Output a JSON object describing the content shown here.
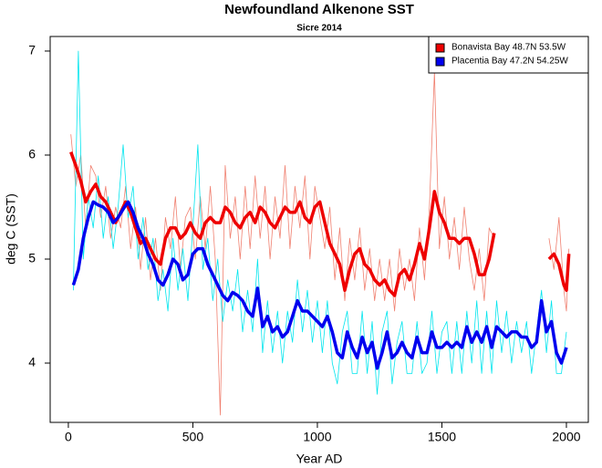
{
  "chart_data": {
    "type": "line",
    "title": "Newfoundland Alkenone SST",
    "subtitle": "Sicre 2014",
    "x_label": "Year AD",
    "y_label": "deg C (SST)",
    "xlim": [
      -73,
      2088
    ],
    "ylim": [
      3.43,
      7.14
    ],
    "xticks": [
      0,
      500,
      1000,
      1500,
      2000
    ],
    "yticks": [
      4,
      5,
      6,
      7
    ],
    "legend": "top-right",
    "series": [
      {
        "color": "#f08070",
        "width": 0.8,
        "x": [
          10,
          30,
          50,
          70,
          90,
          110,
          130,
          150,
          170,
          190,
          210,
          230,
          250,
          270,
          290,
          310,
          330,
          350,
          370,
          390,
          410,
          430,
          450,
          470,
          490,
          510,
          530,
          550,
          570,
          590,
          610,
          630,
          650,
          670,
          690,
          710,
          730,
          750,
          770,
          790,
          810,
          830,
          850,
          870,
          890,
          910,
          930,
          950,
          970,
          990,
          1010,
          1030,
          1050,
          1070,
          1090,
          1110,
          1130,
          1150,
          1170,
          1190,
          1210,
          1230,
          1250,
          1270,
          1290,
          1310,
          1330,
          1350,
          1370,
          1390,
          1410,
          1430,
          1450,
          1470,
          1490,
          1510,
          1530,
          1550,
          1570,
          1590,
          1610,
          1630,
          1650,
          1670,
          1690,
          1710,
          1820,
          1930,
          1950,
          1970,
          1990,
          2000,
          2010
        ],
        "values": [
          6.2,
          5.7,
          6.0,
          5.3,
          5.9,
          5.8,
          5.4,
          5.7,
          5.2,
          5.5,
          5.3,
          5.7,
          5.1,
          5.5,
          4.9,
          5.4,
          4.8,
          5.2,
          4.7,
          5.4,
          5.1,
          5.6,
          4.9,
          5.4,
          5.5,
          5.0,
          5.6,
          5.1,
          5.7,
          5.0,
          3.5,
          5.9,
          5.2,
          5.6,
          5.0,
          5.7,
          5.1,
          5.8,
          5.2,
          5.7,
          5.0,
          5.6,
          5.2,
          5.9,
          5.1,
          5.7,
          5.3,
          5.8,
          5.0,
          5.7,
          5.4,
          5.1,
          5.5,
          4.8,
          5.3,
          4.6,
          5.2,
          4.8,
          5.3,
          4.7,
          5.1,
          4.6,
          5.0,
          4.6,
          5.0,
          4.5,
          5.1,
          4.7,
          5.0,
          4.6,
          5.3,
          4.8,
          5.5,
          6.8,
          5.1,
          5.6,
          5.0,
          5.4,
          4.9,
          5.5,
          5.0,
          4.7,
          5.1,
          4.6,
          5.3,
          5.2,
          null,
          5.2,
          4.9,
          5.4,
          4.7,
          4.5,
          5.1
        ]
      },
      {
        "color": "#00e5ee",
        "width": 0.8,
        "x": [
          20,
          40,
          60,
          80,
          100,
          120,
          140,
          160,
          180,
          200,
          220,
          240,
          260,
          280,
          300,
          320,
          340,
          360,
          380,
          400,
          420,
          440,
          460,
          480,
          500,
          520,
          540,
          560,
          580,
          600,
          620,
          640,
          660,
          680,
          700,
          720,
          740,
          760,
          780,
          800,
          820,
          840,
          860,
          880,
          900,
          920,
          940,
          960,
          980,
          1000,
          1020,
          1040,
          1060,
          1080,
          1100,
          1120,
          1140,
          1160,
          1180,
          1200,
          1220,
          1240,
          1260,
          1280,
          1300,
          1320,
          1340,
          1360,
          1380,
          1400,
          1420,
          1440,
          1460,
          1480,
          1500,
          1520,
          1540,
          1560,
          1580,
          1600,
          1620,
          1640,
          1660,
          1680,
          1700,
          1720,
          1740,
          1760,
          1780,
          1800,
          1820,
          1840,
          1860,
          1880,
          1900,
          1920,
          1940,
          1960,
          1980,
          2000
        ],
        "values": [
          4.7,
          7.0,
          5.0,
          5.6,
          5.3,
          5.8,
          5.2,
          5.6,
          5.1,
          5.5,
          6.1,
          5.4,
          5.7,
          5.0,
          5.4,
          4.9,
          5.2,
          4.6,
          4.9,
          4.5,
          5.2,
          4.7,
          5.1,
          4.6,
          5.3,
          6.1,
          4.9,
          5.2,
          4.6,
          5.0,
          4.4,
          4.8,
          4.5,
          4.9,
          4.3,
          4.7,
          4.3,
          5.0,
          4.1,
          4.6,
          4.1,
          4.5,
          4.0,
          4.5,
          4.2,
          4.8,
          4.3,
          4.7,
          4.2,
          4.6,
          4.1,
          4.6,
          4.0,
          3.8,
          4.3,
          4.5,
          3.9,
          3.9,
          4.5,
          3.9,
          4.4,
          3.7,
          4.3,
          4.5,
          3.8,
          4.2,
          4.4,
          3.9,
          3.9,
          4.4,
          3.9,
          4.0,
          4.5,
          3.9,
          4.3,
          4.4,
          3.9,
          4.4,
          3.9,
          4.5,
          4.0,
          4.6,
          3.9,
          4.5,
          3.9,
          4.6,
          4.1,
          4.5,
          4.0,
          4.4,
          4.1,
          4.4,
          3.9,
          4.3,
          4.7,
          4.1,
          4.6,
          3.9,
          3.9,
          4.3
        ]
      },
      {
        "name": "Bonavista Bay 48.7N 53.5W",
        "color": "#ee0000",
        "width": 3.5,
        "x": [
          10,
          30,
          50,
          70,
          90,
          110,
          130,
          150,
          170,
          190,
          210,
          230,
          250,
          270,
          290,
          310,
          330,
          350,
          370,
          390,
          410,
          430,
          450,
          470,
          490,
          510,
          530,
          550,
          570,
          590,
          610,
          630,
          650,
          670,
          690,
          710,
          730,
          750,
          770,
          790,
          810,
          830,
          850,
          870,
          890,
          910,
          930,
          950,
          970,
          990,
          1010,
          1030,
          1050,
          1070,
          1090,
          1110,
          1130,
          1150,
          1170,
          1190,
          1210,
          1230,
          1250,
          1270,
          1290,
          1310,
          1330,
          1350,
          1370,
          1390,
          1410,
          1430,
          1450,
          1470,
          1490,
          1510,
          1530,
          1550,
          1570,
          1590,
          1610,
          1630,
          1650,
          1670,
          1690,
          1710,
          1820,
          1930,
          1950,
          1970,
          1990,
          2000,
          2010
        ],
        "values": [
          6.03,
          5.9,
          5.75,
          5.55,
          5.65,
          5.72,
          5.6,
          5.55,
          5.45,
          5.35,
          5.45,
          5.55,
          5.45,
          5.3,
          5.15,
          5.2,
          5.1,
          5.0,
          4.95,
          5.2,
          5.3,
          5.3,
          5.2,
          5.25,
          5.35,
          5.25,
          5.2,
          5.35,
          5.4,
          5.35,
          5.35,
          5.5,
          5.45,
          5.35,
          5.3,
          5.4,
          5.45,
          5.35,
          5.5,
          5.45,
          5.35,
          5.3,
          5.4,
          5.5,
          5.45,
          5.45,
          5.55,
          5.4,
          5.35,
          5.5,
          5.55,
          5.35,
          5.15,
          5.05,
          4.95,
          4.7,
          4.9,
          5.05,
          5.1,
          4.95,
          4.9,
          4.8,
          4.75,
          4.8,
          4.7,
          4.65,
          4.85,
          4.9,
          4.8,
          4.95,
          5.15,
          5.0,
          5.3,
          5.65,
          5.45,
          5.35,
          5.2,
          5.2,
          5.15,
          5.2,
          5.2,
          5.05,
          4.85,
          4.85,
          5.0,
          5.25,
          null,
          5.0,
          5.05,
          4.95,
          4.75,
          4.7,
          5.05
        ]
      },
      {
        "name": "Placentia Bay 47.2N 54.25W",
        "color": "#0000ee",
        "width": 3.5,
        "x": [
          20,
          40,
          60,
          80,
          100,
          120,
          140,
          160,
          180,
          200,
          220,
          240,
          260,
          280,
          300,
          320,
          340,
          360,
          380,
          400,
          420,
          440,
          460,
          480,
          500,
          520,
          540,
          560,
          580,
          600,
          620,
          640,
          660,
          680,
          700,
          720,
          740,
          760,
          780,
          800,
          820,
          840,
          860,
          880,
          900,
          920,
          940,
          960,
          980,
          1000,
          1020,
          1040,
          1060,
          1080,
          1100,
          1120,
          1140,
          1160,
          1180,
          1200,
          1220,
          1240,
          1260,
          1280,
          1300,
          1320,
          1340,
          1360,
          1380,
          1400,
          1420,
          1440,
          1460,
          1480,
          1500,
          1520,
          1540,
          1560,
          1580,
          1600,
          1620,
          1640,
          1660,
          1680,
          1700,
          1720,
          1740,
          1760,
          1780,
          1800,
          1820,
          1840,
          1860,
          1880,
          1900,
          1920,
          1940,
          1960,
          1980,
          2000
        ],
        "values": [
          4.75,
          4.9,
          5.2,
          5.4,
          5.55,
          5.52,
          5.5,
          5.45,
          5.35,
          5.4,
          5.48,
          5.55,
          5.45,
          5.3,
          5.2,
          5.05,
          4.95,
          4.8,
          4.75,
          4.85,
          5.0,
          4.95,
          4.8,
          4.85,
          5.05,
          5.1,
          5.1,
          4.95,
          4.85,
          4.75,
          4.65,
          4.6,
          4.68,
          4.65,
          4.6,
          4.5,
          4.45,
          4.72,
          4.35,
          4.45,
          4.3,
          4.35,
          4.25,
          4.3,
          4.45,
          4.6,
          4.5,
          4.5,
          4.45,
          4.4,
          4.35,
          4.45,
          4.3,
          4.1,
          4.05,
          4.3,
          4.15,
          4.05,
          4.25,
          4.1,
          4.2,
          3.95,
          4.1,
          4.3,
          4.05,
          4.1,
          4.2,
          4.1,
          4.05,
          4.25,
          4.1,
          4.1,
          4.3,
          4.15,
          4.15,
          4.2,
          4.15,
          4.2,
          4.15,
          4.35,
          4.2,
          4.3,
          4.2,
          4.35,
          4.15,
          4.35,
          4.3,
          4.25,
          4.3,
          4.3,
          4.25,
          4.25,
          4.15,
          4.2,
          4.6,
          4.3,
          4.4,
          4.1,
          4.0,
          4.15
        ]
      }
    ]
  }
}
